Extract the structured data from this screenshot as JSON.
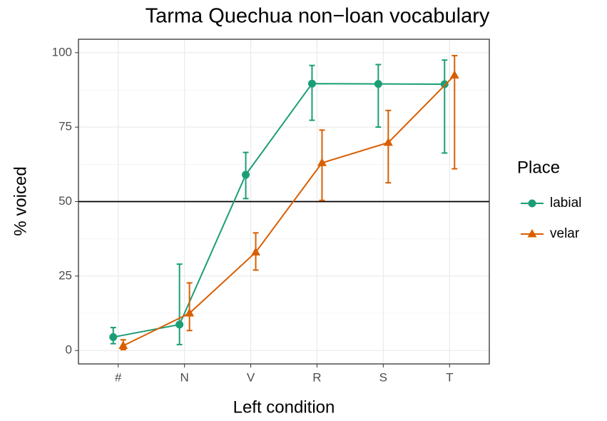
{
  "chart_data": {
    "type": "line",
    "title": "Tarma Quechua non−loan vocabulary",
    "x_label": "Left condition",
    "y_label": "% voiced",
    "categories": [
      "#",
      "N",
      "V",
      "R",
      "S",
      "T"
    ],
    "ylim": [
      -4.5,
      104.5
    ],
    "yticks": [
      0,
      25,
      50,
      75,
      100
    ],
    "grid": true,
    "hline": 50,
    "legend_title": "Place",
    "legend_position": "right",
    "series": [
      {
        "name": "labial",
        "color": "#1b9e77",
        "shape": "circle",
        "values": [
          4.5,
          8.7,
          59,
          89.6,
          89.5,
          89.4
        ],
        "lower": [
          2.3,
          2,
          51,
          77.3,
          75,
          66.3
        ],
        "upper": [
          7.7,
          29,
          66.5,
          95.7,
          96,
          97.5
        ]
      },
      {
        "name": "velar",
        "color": "#d95f02",
        "shape": "triangle",
        "values": [
          1.6,
          12.5,
          33,
          63,
          69.8,
          92.4
        ],
        "lower": [
          0.3,
          6.7,
          27,
          50.4,
          56.3,
          61
        ],
        "upper": [
          3.6,
          22.7,
          39.5,
          74,
          80.6,
          99
        ]
      }
    ]
  }
}
